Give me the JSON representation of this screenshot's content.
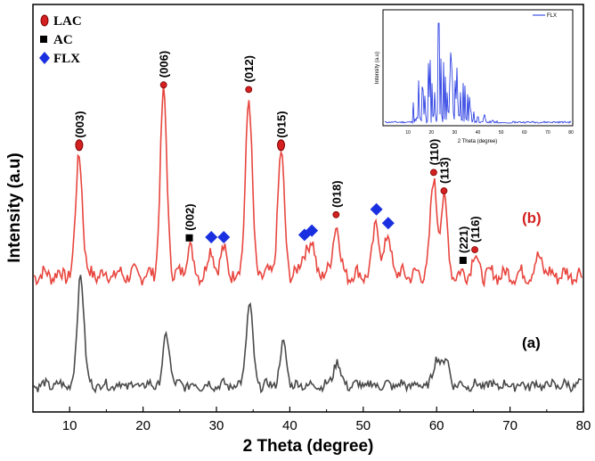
{
  "chart_data": {
    "type": "line",
    "xlabel": "2 Theta (degree)",
    "ylabel": "Intensity (a.u)",
    "xlim": [
      5,
      80
    ],
    "xticks": [
      10,
      20,
      30,
      40,
      50,
      60,
      70,
      80
    ],
    "colors": {
      "sample_b": "#e8463f",
      "sample_a": "#4a4a4a",
      "lac": "#d42020",
      "ac": "#000000",
      "flx": "#1a2fe0",
      "inset_line": "#1a2fe0",
      "curve_label_b": "#d42020"
    },
    "series": [
      {
        "name": "(b)",
        "peaks": [
          {
            "x": 11.3,
            "h": 0.52
          },
          {
            "x": 22.8,
            "h": 0.78
          },
          {
            "x": 26.3,
            "h": 0.12
          },
          {
            "x": 29.3,
            "h": 0.1
          },
          {
            "x": 31.0,
            "h": 0.1
          },
          {
            "x": 34.4,
            "h": 0.76
          },
          {
            "x": 38.8,
            "h": 0.52
          },
          {
            "x": 42.0,
            "h": 0.1
          },
          {
            "x": 43.0,
            "h": 0.12
          },
          {
            "x": 46.3,
            "h": 0.22
          },
          {
            "x": 51.8,
            "h": 0.22
          },
          {
            "x": 53.4,
            "h": 0.16
          },
          {
            "x": 59.6,
            "h": 0.4
          },
          {
            "x": 61.0,
            "h": 0.32
          },
          {
            "x": 65.2,
            "h": 0.08
          },
          {
            "x": 74.0,
            "h": 0.08
          }
        ]
      },
      {
        "name": "(a)",
        "peaks": [
          {
            "x": 11.5,
            "h": 0.5
          },
          {
            "x": 23.2,
            "h": 0.22
          },
          {
            "x": 34.5,
            "h": 0.36
          },
          {
            "x": 39.1,
            "h": 0.18
          },
          {
            "x": 46.4,
            "h": 0.11
          },
          {
            "x": 60.1,
            "h": 0.13
          },
          {
            "x": 61.3,
            "h": 0.11
          }
        ]
      }
    ],
    "curve_labels": [
      {
        "text": "(b)",
        "series": "(b)"
      },
      {
        "text": "(a)",
        "series": "(a)"
      }
    ],
    "legend": {
      "position": "top-left",
      "items": [
        {
          "label": "LAC",
          "marker": "red-ellipse"
        },
        {
          "label": "AC",
          "marker": "black-square"
        },
        {
          "label": "FLX",
          "marker": "blue-diamond"
        }
      ]
    },
    "annotations": [
      {
        "text": "(003)",
        "x": 11.3,
        "marker": "red-ellipse"
      },
      {
        "text": "(006)",
        "x": 22.8,
        "marker": "red-dot"
      },
      {
        "text": "(002)",
        "x": 26.3,
        "marker": "black-square"
      },
      {
        "text": "(012)",
        "x": 34.4,
        "marker": "red-dot"
      },
      {
        "text": "(015)",
        "x": 38.8,
        "marker": "red-ellipse"
      },
      {
        "text": "(018)",
        "x": 46.3,
        "marker": "red-dot"
      },
      {
        "text": "(110)",
        "x": 59.6,
        "marker": "red-dot"
      },
      {
        "text": "(113)",
        "x": 61.0,
        "marker": "red-dot"
      },
      {
        "text": "(221)",
        "x": 63.6,
        "marker": "black-square"
      },
      {
        "text": "(116)",
        "x": 65.2,
        "marker": "red-dot"
      }
    ],
    "flx_markers": [
      29.3,
      31.0,
      42.0,
      43.0,
      51.8,
      53.4
    ],
    "inset": {
      "xlabel": "2 Theta (degree)",
      "ylabel": "Intensity (a.u)",
      "legend": "FLX",
      "xticks": [
        10,
        20,
        30,
        40,
        50,
        60,
        70,
        80
      ],
      "xlim": [
        0,
        80
      ]
    }
  }
}
